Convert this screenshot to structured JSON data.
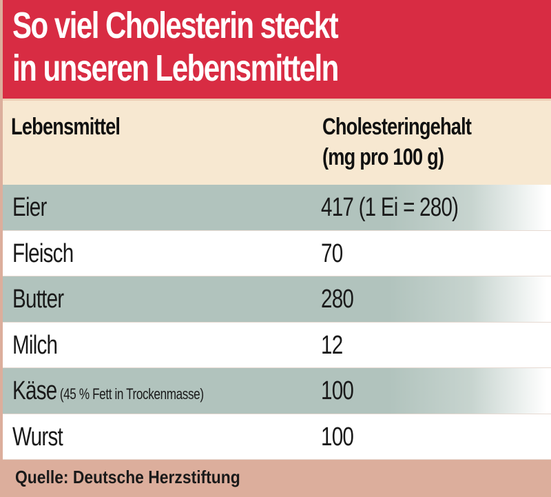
{
  "title": {
    "line1": "So viel Cholesterin steckt",
    "line2": "in unseren Lebensmitteln"
  },
  "table": {
    "headers": {
      "food": "Lebensmittel",
      "content_line1": "Cholesteringehalt",
      "content_line2": "(mg pro 100 g)"
    },
    "rows": [
      {
        "food": "Eier",
        "note": "",
        "value": "417 (1 Ei = 280)"
      },
      {
        "food": "Fleisch",
        "note": "",
        "value": "70"
      },
      {
        "food": "Butter",
        "note": "",
        "value": "280"
      },
      {
        "food": "Milch",
        "note": "",
        "value": "12"
      },
      {
        "food": "Käse",
        "note": " (45 % Fett in Trockenmasse)",
        "value": "100"
      },
      {
        "food": "Wurst",
        "note": "",
        "value": "100"
      }
    ]
  },
  "footer": {
    "source": "Quelle: Deutsche Herzstiftung"
  },
  "colors": {
    "title_bg": "#d82c43",
    "header_bg": "#f7e8d1",
    "shaded_row": "#b1c3bd",
    "plain_row": "#ffffff",
    "footer_bg": "#dcae9c"
  },
  "chart_data": {
    "type": "table",
    "title": "So viel Cholesterin steckt in unseren Lebensmitteln",
    "columns": [
      "Lebensmittel",
      "Cholesteringehalt (mg pro 100 g)"
    ],
    "rows": [
      [
        "Eier",
        "417 (1 Ei = 280)"
      ],
      [
        "Fleisch",
        "70"
      ],
      [
        "Butter",
        "280"
      ],
      [
        "Milch",
        "12"
      ],
      [
        "Käse (45 % Fett in Trockenmasse)",
        "100"
      ],
      [
        "Wurst",
        "100"
      ]
    ],
    "categories": [
      "Eier",
      "Fleisch",
      "Butter",
      "Milch",
      "Käse",
      "Wurst"
    ],
    "values": [
      417,
      70,
      280,
      12,
      100,
      100
    ],
    "unit": "mg pro 100 g",
    "source": "Quelle: Deutsche Herzstiftung"
  }
}
